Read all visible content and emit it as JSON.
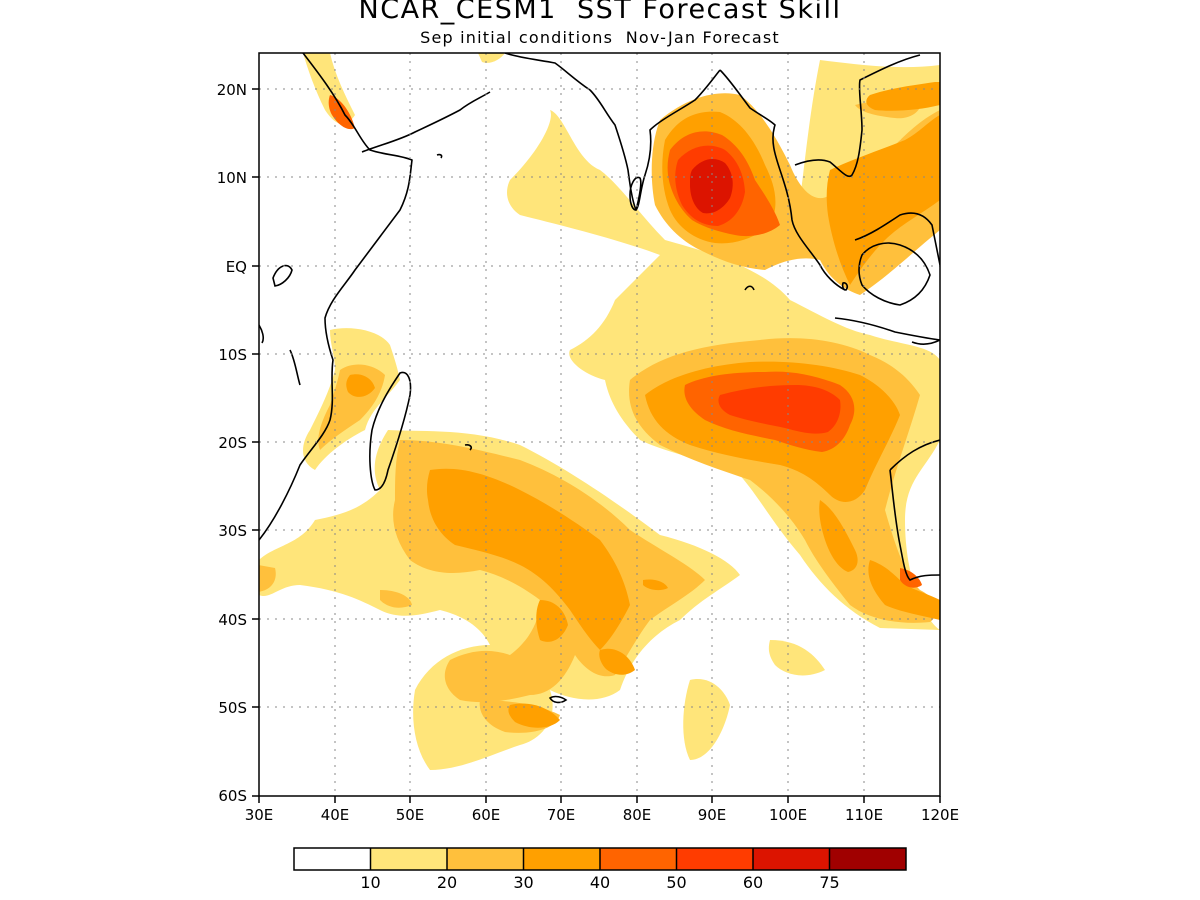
{
  "title": "NCAR_CESM1  SST Forecast Skill",
  "subtitle": "Sep initial conditions  Nov-Jan Forecast",
  "map": {
    "region": "Indian Ocean",
    "lon_range": [
      30,
      120
    ],
    "lat_range": [
      -60,
      24
    ],
    "grid": true,
    "lat_ticks": [
      "20N",
      "10N",
      "EQ",
      "10S",
      "20S",
      "30S",
      "40S",
      "50S",
      "60S"
    ],
    "lon_ticks": [
      "30E",
      "40E",
      "50E",
      "60E",
      "70E",
      "80E",
      "90E",
      "100E",
      "110E",
      "120E"
    ]
  },
  "colorbar": {
    "colors": [
      "#ffffff",
      "#ffe57a",
      "#ffc03c",
      "#ffa000",
      "#ff6400",
      "#ff3c00",
      "#dc1400",
      "#a00000"
    ],
    "labels": [
      "10",
      "20",
      "30",
      "40",
      "50",
      "60",
      "75"
    ]
  }
}
